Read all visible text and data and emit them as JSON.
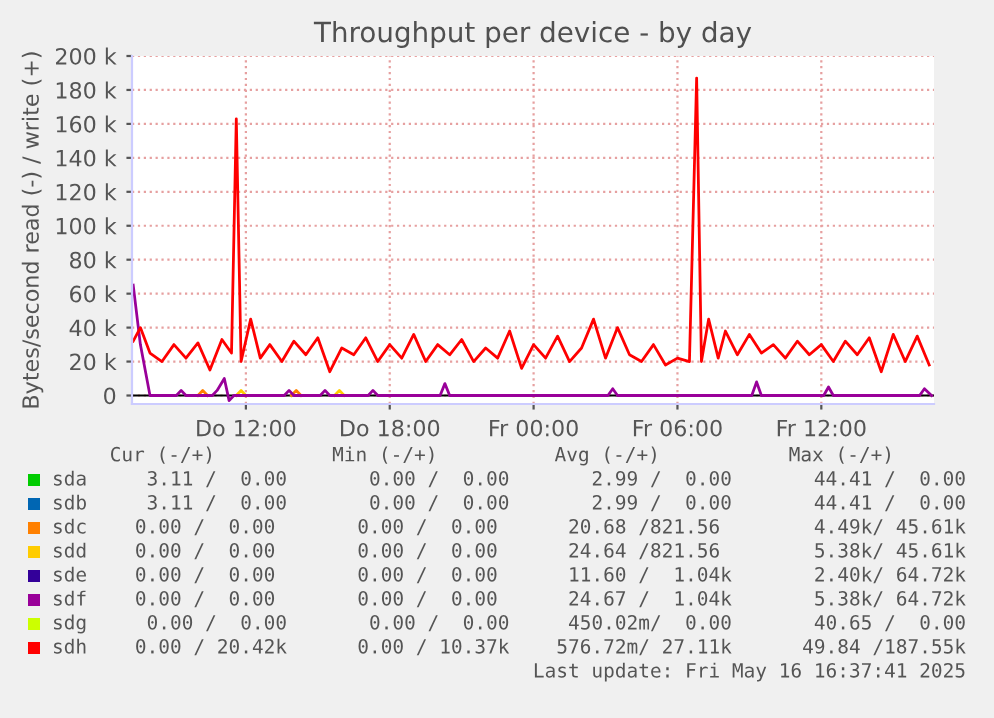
{
  "chart_data": {
    "type": "line",
    "title": "Throughput per device - by day",
    "ylabel": "Bytes/second read (-) / write (+)",
    "xlim": [
      "2025-05-15T07:15",
      "2025-05-16T16:42"
    ],
    "xticks": [
      {
        "value": "2025-05-15T12:00",
        "label": "Do 12:00"
      },
      {
        "value": "2025-05-15T18:00",
        "label": "Do 18:00"
      },
      {
        "value": "2025-05-16T00:00",
        "label": "Fr 00:00"
      },
      {
        "value": "2025-05-16T06:00",
        "label": "Fr 06:00"
      },
      {
        "value": "2025-05-16T12:00",
        "label": "Fr 12:00"
      }
    ],
    "ylim": [
      -5,
      200
    ],
    "yticks": [
      {
        "value": 0,
        "label": "0"
      },
      {
        "value": 20,
        "label": "20 k"
      },
      {
        "value": 40,
        "label": "40 k"
      },
      {
        "value": 60,
        "label": "60 k"
      },
      {
        "value": 80,
        "label": "80 k"
      },
      {
        "value": 100,
        "label": "100 k"
      },
      {
        "value": 120,
        "label": "120 k"
      },
      {
        "value": 140,
        "label": "140 k"
      },
      {
        "value": 160,
        "label": "160 k"
      },
      {
        "value": 180,
        "label": "180 k"
      },
      {
        "value": 200,
        "label": "200 k"
      }
    ],
    "grid": true,
    "legend": "bottom",
    "series": [
      {
        "name": "sda",
        "color": "#00cc00"
      },
      {
        "name": "sdb",
        "color": "#0066b3"
      },
      {
        "name": "sdc",
        "color": "#ff8000",
        "x": [
          "2025-05-15T10:00",
          "2025-05-15T10:12",
          "2025-05-15T10:24",
          "2025-05-15T10:30",
          "2025-05-15T13:54",
          "2025-05-15T14:06",
          "2025-05-15T14:18"
        ],
        "values": [
          0,
          3,
          0,
          null,
          0,
          3,
          0
        ]
      },
      {
        "name": "sdd",
        "color": "#ffcc00",
        "x": [
          "2025-05-15T11:36",
          "2025-05-15T11:48",
          "2025-05-15T12:00",
          "2025-05-15T12:06",
          "2025-05-15T15:42",
          "2025-05-15T15:54",
          "2025-05-15T16:06"
        ],
        "values": [
          0,
          3,
          0,
          null,
          0,
          3,
          0
        ]
      },
      {
        "name": "sde",
        "color": "#330099"
      },
      {
        "name": "sdf",
        "color": "#990099",
        "x": [
          "2025-05-15T07:18",
          "2025-05-15T07:36",
          "2025-05-15T08:00",
          "2025-05-15T09:06",
          "2025-05-15T09:18",
          "2025-05-15T09:30",
          "2025-05-15T10:36",
          "2025-05-15T10:48",
          "2025-05-15T11:06",
          "2025-05-15T11:18",
          "2025-05-15T11:30",
          "2025-05-15T13:36",
          "2025-05-15T13:48",
          "2025-05-15T14:00",
          "2025-05-15T15:06",
          "2025-05-15T15:18",
          "2025-05-15T15:30",
          "2025-05-15T17:06",
          "2025-05-15T17:18",
          "2025-05-15T17:30",
          "2025-05-15T20:06",
          "2025-05-15T20:18",
          "2025-05-15T20:30",
          "2025-05-16T03:06",
          "2025-05-16T03:18",
          "2025-05-16T03:30",
          "2025-05-16T09:06",
          "2025-05-16T09:18",
          "2025-05-16T09:30",
          "2025-05-16T12:06",
          "2025-05-16T12:18",
          "2025-05-16T12:30",
          "2025-05-16T16:06",
          "2025-05-16T16:18",
          "2025-05-16T16:36"
        ],
        "values": [
          65,
          30,
          0,
          0,
          3,
          0,
          0,
          3,
          10,
          -3,
          0,
          0,
          3,
          0,
          0,
          3,
          0,
          0,
          3,
          0,
          0,
          7,
          0,
          0,
          4,
          0,
          0,
          8,
          0,
          0,
          5,
          0,
          0,
          4,
          0
        ]
      },
      {
        "name": "sdg",
        "color": "#ccff00"
      },
      {
        "name": "sdh",
        "color": "#ff0000",
        "x": [
          "2025-05-15T07:18",
          "2025-05-15T07:36",
          "2025-05-15T08:00",
          "2025-05-15T08:30",
          "2025-05-15T09:00",
          "2025-05-15T09:30",
          "2025-05-15T10:00",
          "2025-05-15T10:30",
          "2025-05-15T11:00",
          "2025-05-15T11:24",
          "2025-05-15T11:36",
          "2025-05-15T11:48",
          "2025-05-15T12:12",
          "2025-05-15T12:36",
          "2025-05-15T13:00",
          "2025-05-15T13:30",
          "2025-05-15T14:00",
          "2025-05-15T14:30",
          "2025-05-15T15:00",
          "2025-05-15T15:30",
          "2025-05-15T16:00",
          "2025-05-15T16:30",
          "2025-05-15T17:00",
          "2025-05-15T17:30",
          "2025-05-15T18:00",
          "2025-05-15T18:30",
          "2025-05-15T19:00",
          "2025-05-15T19:30",
          "2025-05-15T20:00",
          "2025-05-15T20:30",
          "2025-05-15T21:00",
          "2025-05-15T21:30",
          "2025-05-15T22:00",
          "2025-05-15T22:30",
          "2025-05-15T23:00",
          "2025-05-15T23:30",
          "2025-05-16T00:00",
          "2025-05-16T00:30",
          "2025-05-16T01:00",
          "2025-05-16T01:30",
          "2025-05-16T02:00",
          "2025-05-16T02:30",
          "2025-05-16T03:00",
          "2025-05-16T03:30",
          "2025-05-16T04:00",
          "2025-05-16T04:30",
          "2025-05-16T05:00",
          "2025-05-16T05:30",
          "2025-05-16T06:00",
          "2025-05-16T06:30",
          "2025-05-16T06:48",
          "2025-05-16T07:00",
          "2025-05-16T07:18",
          "2025-05-16T07:42",
          "2025-05-16T08:00",
          "2025-05-16T08:30",
          "2025-05-16T09:00",
          "2025-05-16T09:30",
          "2025-05-16T10:00",
          "2025-05-16T10:30",
          "2025-05-16T11:00",
          "2025-05-16T11:30",
          "2025-05-16T12:00",
          "2025-05-16T12:30",
          "2025-05-16T13:00",
          "2025-05-16T13:30",
          "2025-05-16T14:00",
          "2025-05-16T14:30",
          "2025-05-16T15:00",
          "2025-05-16T15:30",
          "2025-05-16T16:00",
          "2025-05-16T16:30"
        ],
        "values": [
          32,
          40,
          25,
          20,
          30,
          22,
          31,
          15,
          33,
          25,
          163,
          20,
          45,
          22,
          30,
          20,
          32,
          24,
          34,
          14,
          28,
          24,
          34,
          20,
          30,
          22,
          36,
          20,
          30,
          24,
          33,
          20,
          28,
          22,
          38,
          16,
          30,
          22,
          35,
          20,
          28,
          45,
          22,
          40,
          24,
          20,
          30,
          18,
          22,
          20,
          187,
          20,
          45,
          22,
          38,
          24,
          36,
          25,
          30,
          22,
          32,
          24,
          30,
          20,
          32,
          24,
          34,
          14,
          36,
          20,
          35,
          18
        ]
      }
    ],
    "annotations": [
      "Cur (-/+)          Min (-/+)          Avg (-/+)           Max (-/+)",
      "3.11 /  0.00       0.00 /  0.00       2.99 /  0.00       44.41 /  0.00",
      "3.11 /  0.00       0.00 /  0.00       2.99 /  0.00       44.41 /  0.00",
      "0.00 /  0.00       0.00 /  0.00      20.68 /821.56        4.49k/ 45.61k",
      "0.00 /  0.00       0.00 /  0.00      24.64 /821.56        5.38k/ 45.61k",
      "0.00 /  0.00       0.00 /  0.00      11.60 /  1.04k       2.40k/ 64.72k",
      "0.00 /  0.00       0.00 /  0.00      24.67 /  1.04k       5.38k/ 64.72k",
      "0.00 /  0.00       0.00 /  0.00     450.02m/  0.00       40.65 /  0.00",
      "0.00 / 20.42k      0.00 / 10.37k    576.72m/ 27.11k      49.84 /187.55k",
      "Last update: Fri May 16 16:37:41 2025"
    ]
  }
}
